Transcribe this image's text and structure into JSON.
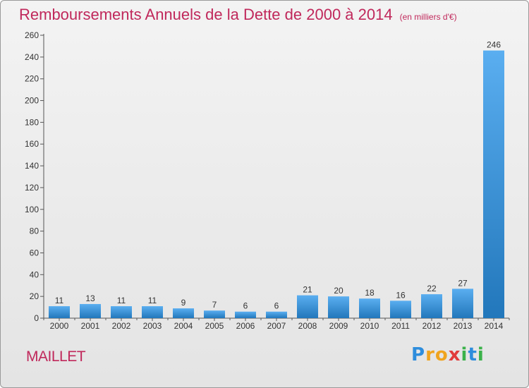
{
  "chart_data": {
    "type": "bar",
    "title": "Remboursements Annuels de la Dette de 2000 à 2014",
    "subtitle": "(en milliers d'€)",
    "categories": [
      "2000",
      "2001",
      "2002",
      "2003",
      "2004",
      "2005",
      "2006",
      "2007",
      "2008",
      "2009",
      "2010",
      "2011",
      "2012",
      "2013",
      "2014"
    ],
    "values": [
      11,
      13,
      11,
      11,
      9,
      7,
      6,
      6,
      21,
      20,
      18,
      16,
      22,
      27,
      246
    ],
    "ylim": [
      0,
      260
    ],
    "yticks": [
      0,
      20,
      40,
      60,
      80,
      100,
      120,
      140,
      160,
      180,
      200,
      220,
      240,
      260
    ],
    "grid": false,
    "xlabel": "",
    "ylabel": ""
  },
  "commune": "MAILLET",
  "logo": {
    "letters": [
      "P",
      "r",
      "o",
      "x",
      "i",
      "t",
      "i"
    ],
    "colors": [
      "#2e8ddc",
      "#f0a41e",
      "#f0a41e",
      "#e13b3b",
      "#3bb24a",
      "#2e8ddc",
      "#3bb24a"
    ]
  },
  "colors": {
    "bar_top": "#5aaef0",
    "bar_bottom": "#2277bb",
    "axis": "#555555",
    "title": "#c0285b"
  }
}
